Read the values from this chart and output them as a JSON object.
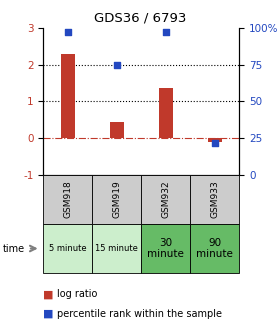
{
  "title": "GDS36 / 6793",
  "samples": [
    "GSM918",
    "GSM919",
    "GSM932",
    "GSM933"
  ],
  "time_labels": [
    "5 minute",
    "15 minute",
    "30\nminute",
    "90\nminute"
  ],
  "log_ratios": [
    2.3,
    0.45,
    1.35,
    -0.1
  ],
  "percentile_ranks": [
    97,
    75,
    97,
    22
  ],
  "bar_color": "#c0392b",
  "dot_color": "#2348c0",
  "ylim_left": [
    -1,
    3
  ],
  "ylim_right": [
    0,
    100
  ],
  "yticks_left": [
    -1,
    0,
    1,
    2,
    3
  ],
  "yticks_right": [
    0,
    25,
    50,
    75,
    100
  ],
  "ytick_labels_right": [
    "0",
    "25",
    "50",
    "75",
    "100%"
  ],
  "grid_lines": [
    1,
    2
  ],
  "zero_line": 0,
  "table_gsm_bg": "#cccccc",
  "time_bg_light": "#cceecc",
  "time_bg_dark": "#66bb66",
  "legend_log_ratio": "log ratio",
  "legend_percentile": "percentile rank within the sample",
  "time_label": "time"
}
